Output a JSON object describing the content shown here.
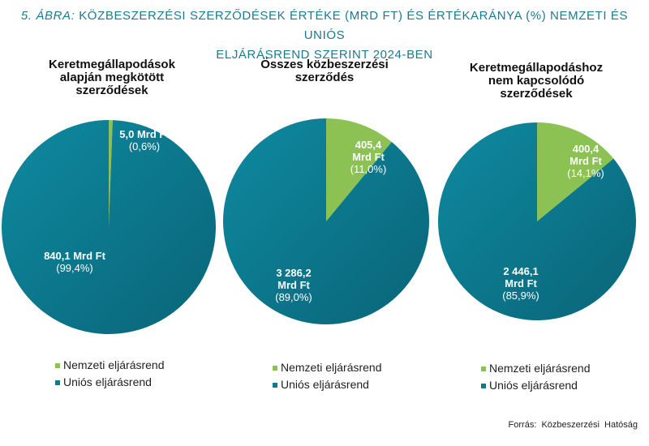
{
  "figure": {
    "number": "5. ÁBRA:",
    "title_line1": "Közbeszerzési szerződések értéke (Mrd Ft) és értékaránya  (%) nemzeti és uniós",
    "title_line2": "eljárásrend szerint 2024-ben",
    "source": "Forrás: Közbeszerzési Hatóság"
  },
  "colors": {
    "nemzeti": "#8cc154",
    "unios": "#0b7b8f",
    "title": "#1b7a90"
  },
  "chart_data": [
    {
      "type": "pie",
      "title": "Keretmegállapodások alapján megkötött szerződések",
      "title_lines": [
        "Keretmegállapodások",
        "alapján megkötött",
        "szerződések"
      ],
      "slices": [
        {
          "name": "Nemzeti eljárásrend",
          "value": 5.0,
          "percent": 0.6,
          "value_lines": [
            "5,0 Mrd Ft"
          ],
          "pct_label": "(0,6%)"
        },
        {
          "name": "Uniós eljárásrend",
          "value": 840.1,
          "percent": 99.4,
          "value_lines": [
            "840,1 Mrd Ft"
          ],
          "pct_label": "(99,4%)"
        }
      ],
      "legend": [
        "Nemzeti eljárásrend",
        "Uniós eljárásrend"
      ]
    },
    {
      "type": "pie",
      "title": "Összes közbeszerzési szerződés",
      "title_lines": [
        "Összes közbeszerzési",
        "szerződés"
      ],
      "slices": [
        {
          "name": "Nemzeti eljárásrend",
          "value": 405.4,
          "percent": 11.0,
          "value_lines": [
            "405,4",
            "Mrd Ft"
          ],
          "pct_label": "(11,0%)"
        },
        {
          "name": "Uniós eljárásrend",
          "value": 3286.2,
          "percent": 89.0,
          "value_lines": [
            "3 286,2",
            "Mrd Ft"
          ],
          "pct_label": "(89,0%)"
        }
      ],
      "legend": [
        "Nemzeti eljárásrend",
        "Uniós eljárásrend"
      ]
    },
    {
      "type": "pie",
      "title": "Keretmegállapodáshoz nem kapcsolódó szerződések",
      "title_lines": [
        "Keretmegállapodáshoz",
        "nem kapcsolódó",
        "szerződések"
      ],
      "slices": [
        {
          "name": "Nemzeti eljárásrend",
          "value": 400.4,
          "percent": 14.1,
          "value_lines": [
            "400,4",
            "Mrd Ft"
          ],
          "pct_label": "(14,1%)"
        },
        {
          "name": "Uniós eljárásrend",
          "value": 2446.1,
          "percent": 85.9,
          "value_lines": [
            "2 446,1",
            "Mrd Ft"
          ],
          "pct_label": "(85,9%)"
        }
      ],
      "legend": [
        "Nemzeti eljárásrend",
        "Uniós eljárásrend"
      ]
    }
  ]
}
